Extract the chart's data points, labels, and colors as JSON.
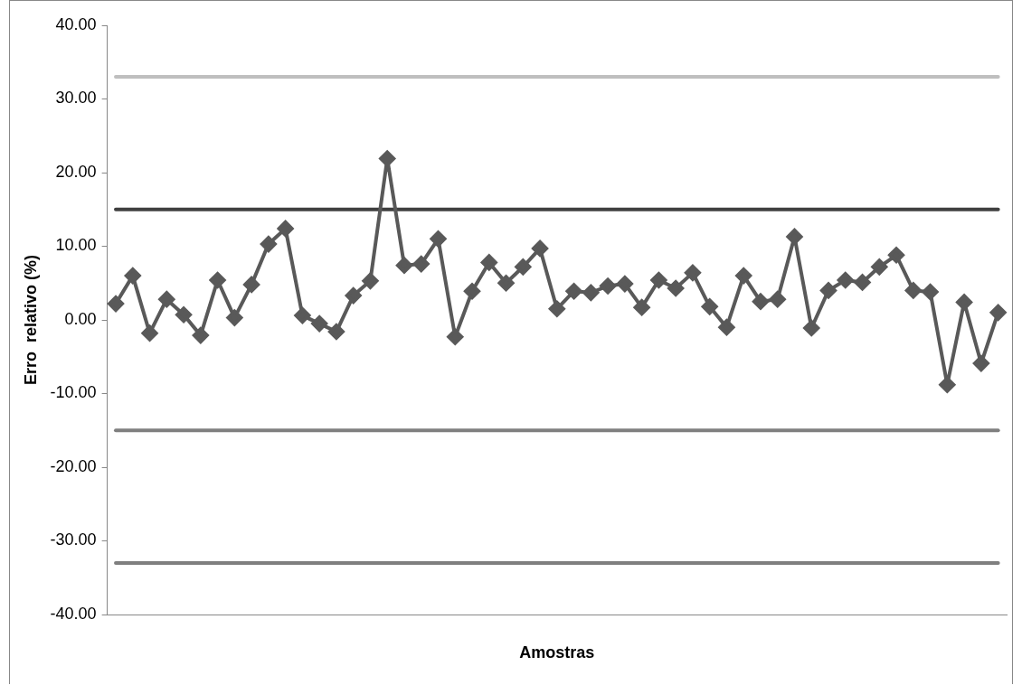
{
  "chart_data": {
    "type": "line",
    "xlabel": "Amostras",
    "ylabel": "Erro  relativo (%)",
    "categories": [
      null,
      null,
      null,
      null,
      null,
      null,
      null,
      null,
      null,
      null,
      null,
      null,
      null,
      null,
      null,
      null,
      null,
      null,
      null,
      null,
      null,
      null,
      null,
      null,
      null,
      null,
      null,
      null,
      null,
      null,
      null,
      null,
      null,
      null,
      null,
      null,
      null,
      null,
      null,
      null,
      null,
      null,
      null,
      null,
      null,
      null,
      null,
      null,
      null,
      null,
      null,
      null,
      null
    ],
    "series": [
      {
        "color": "#595959",
        "values": [
          2.2,
          6.0,
          -1.8,
          2.8,
          0.7,
          -2.1,
          5.4,
          0.3,
          4.8,
          10.3,
          12.4,
          0.6,
          -0.5,
          -1.6,
          3.3,
          5.3,
          21.9,
          7.4,
          7.6,
          11.0,
          -2.3,
          3.9,
          7.8,
          5.0,
          7.2,
          9.7,
          1.5,
          3.9,
          3.7,
          4.6,
          4.9,
          1.7,
          5.4,
          4.3,
          6.4,
          1.8,
          -1.0,
          6.0,
          2.5,
          2.8,
          11.3,
          -1.1,
          4.0,
          5.4,
          5.1,
          7.2,
          8.8,
          4.0,
          3.8,
          -8.8,
          2.4,
          -5.9,
          1.0
        ]
      }
    ],
    "ylim": [
      -40,
      40
    ],
    "yticks": [
      {
        "value": -40,
        "label": "-40.00"
      },
      {
        "value": -30,
        "label": "-30.00"
      },
      {
        "value": -20,
        "label": "-20.00"
      },
      {
        "value": -10,
        "label": "-10.00"
      },
      {
        "value": 0,
        "label": "0.00"
      },
      {
        "value": 10,
        "label": "10.00"
      },
      {
        "value": 20,
        "label": "20.00"
      },
      {
        "value": 30,
        "label": "30.00"
      },
      {
        "value": 40,
        "label": "40.00"
      }
    ],
    "ref_lines": [
      {
        "axis": "y",
        "value": 33,
        "color": "#bfbfbf"
      },
      {
        "axis": "y",
        "value": 15,
        "color": "#404040"
      },
      {
        "axis": "y",
        "value": -15,
        "color": "#7f7f7f"
      },
      {
        "axis": "y",
        "value": -33,
        "color": "#7f7f7f"
      }
    ],
    "marker": "diamond",
    "line_style": "solid",
    "grid": false,
    "legend": false
  }
}
